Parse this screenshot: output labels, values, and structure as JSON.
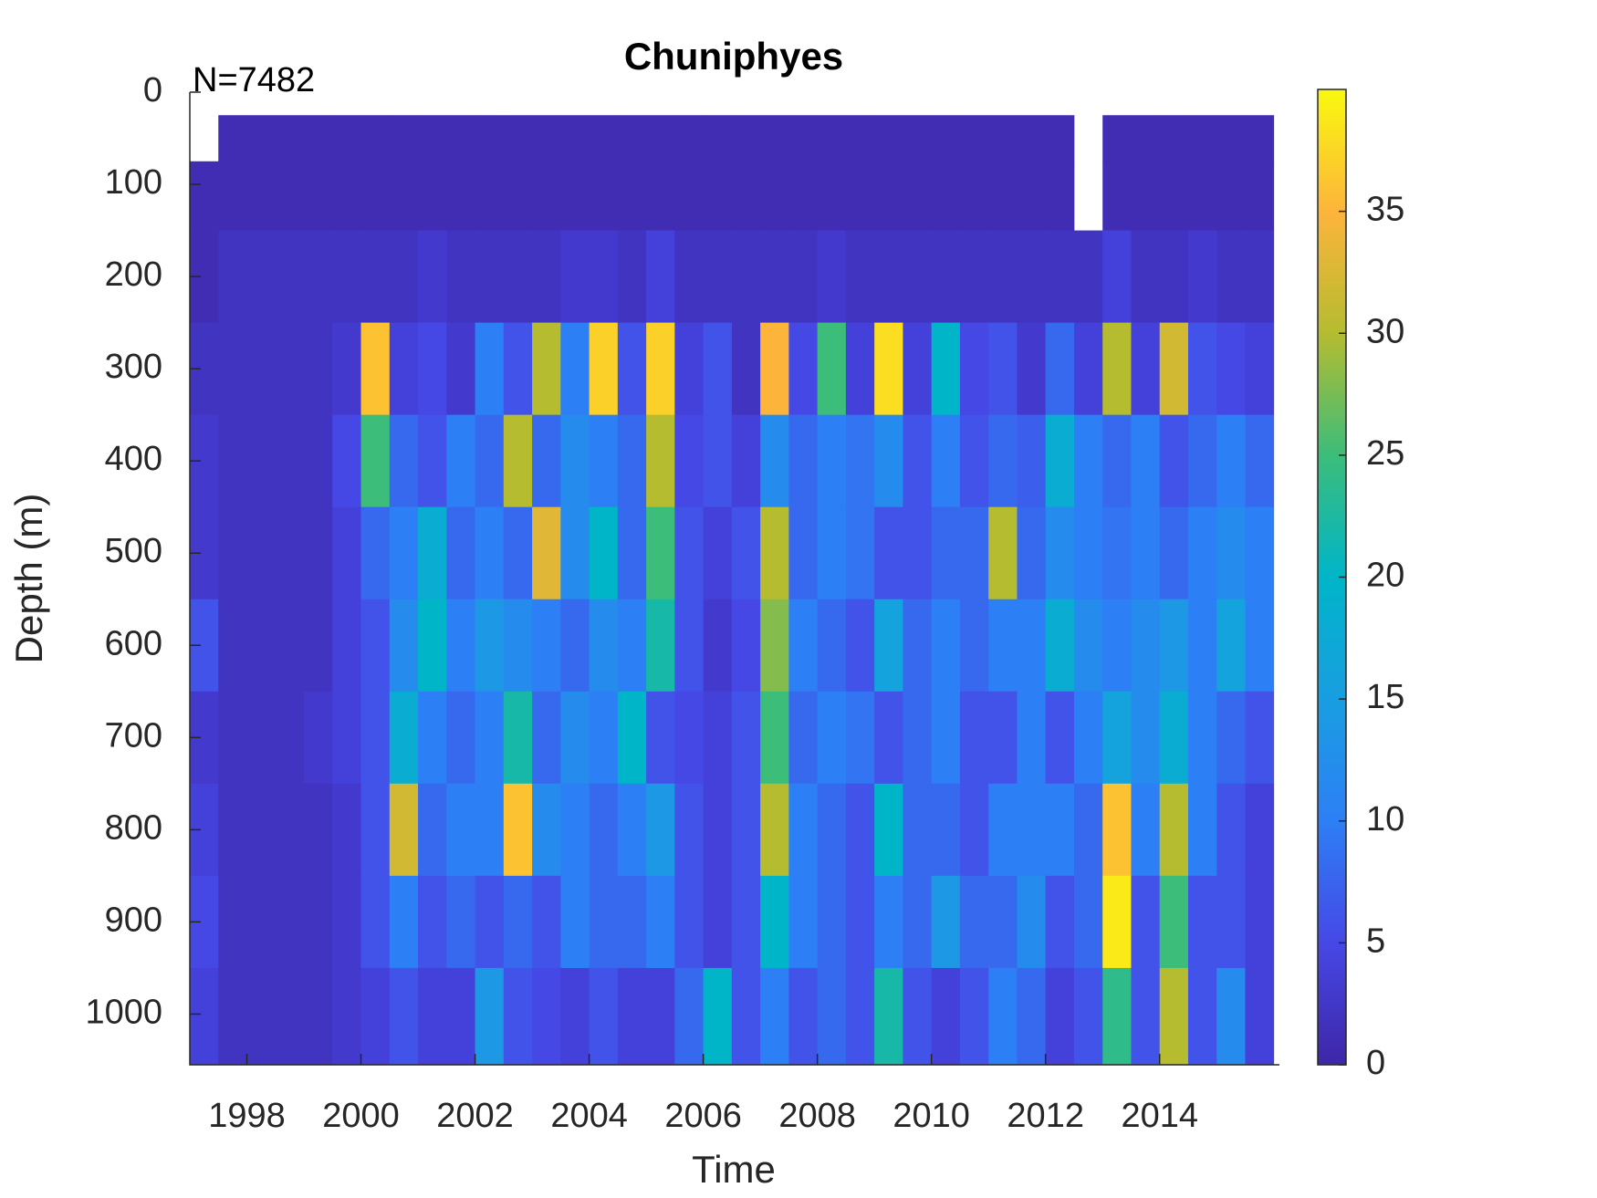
{
  "chart_data": {
    "type": "heatmap",
    "title": "Chuniphyes",
    "annotation": "N=7482",
    "xlabel": "Time",
    "ylabel": "Depth (m)",
    "x_edges": [
      1997,
      1997.5,
      1998,
      1998.5,
      1999,
      1999.5,
      2000,
      2000.5,
      2001,
      2001.5,
      2002,
      2002.5,
      2003,
      2003.5,
      2004,
      2004.5,
      2005,
      2005.5,
      2006,
      2006.5,
      2007,
      2007.5,
      2008,
      2008.5,
      2009,
      2009.5,
      2010,
      2010.5,
      2011,
      2011.5,
      2012,
      2012.5,
      2013,
      2013.5,
      2014,
      2014.5,
      2015,
      2015.5,
      2016
    ],
    "y_edges": [
      25,
      75,
      150,
      250,
      350,
      450,
      550,
      650,
      750,
      850,
      950,
      1055
    ],
    "values": [
      [
        null,
        1,
        1,
        1,
        1,
        1,
        1,
        1,
        1,
        1,
        1,
        1,
        1,
        1,
        1,
        1,
        1,
        1,
        1,
        1,
        1,
        1,
        1,
        1,
        1,
        1,
        1,
        1,
        1,
        1,
        1,
        null,
        1,
        1,
        1,
        1,
        1,
        1
      ],
      [
        1,
        1,
        1,
        1,
        1,
        1,
        1,
        1,
        1,
        1,
        1,
        1,
        1,
        1,
        1,
        1,
        1,
        1,
        1,
        1,
        1,
        1,
        1,
        1,
        1,
        1,
        1,
        1,
        1,
        1,
        1,
        null,
        1,
        1,
        1,
        1,
        1,
        1
      ],
      [
        1,
        2,
        2,
        2,
        2,
        2,
        2,
        2,
        3,
        2,
        2,
        2,
        2,
        3,
        3,
        2,
        4,
        2,
        2,
        2,
        2,
        2,
        3,
        2,
        2,
        2,
        2,
        2,
        2,
        2,
        2,
        2,
        4,
        2,
        2,
        3,
        2,
        2
      ],
      [
        2,
        2,
        2,
        2,
        2,
        3,
        36,
        4,
        5,
        3,
        10,
        6,
        30,
        10,
        37,
        6,
        37,
        4,
        6,
        2,
        35,
        5,
        25,
        4,
        38,
        4,
        20,
        5,
        6,
        3,
        8,
        4,
        30,
        4,
        32,
        6,
        5,
        4
      ],
      [
        3,
        2,
        2,
        2,
        2,
        5,
        25,
        8,
        6,
        10,
        8,
        30,
        8,
        12,
        10,
        8,
        30,
        5,
        6,
        4,
        12,
        8,
        10,
        9,
        12,
        6,
        10,
        6,
        8,
        7,
        18,
        10,
        8,
        10,
        6,
        8,
        10,
        8
      ],
      [
        3,
        2,
        2,
        2,
        2,
        4,
        8,
        10,
        18,
        8,
        10,
        8,
        33,
        12,
        20,
        8,
        25,
        6,
        4,
        6,
        30,
        8,
        10,
        9,
        6,
        6,
        8,
        8,
        30,
        8,
        12,
        10,
        9,
        10,
        8,
        10,
        12,
        10
      ],
      [
        6,
        2,
        2,
        2,
        2,
        4,
        6,
        12,
        20,
        10,
        14,
        12,
        10,
        8,
        12,
        10,
        22,
        6,
        3,
        5,
        28,
        10,
        8,
        6,
        16,
        8,
        10,
        8,
        10,
        10,
        18,
        12,
        10,
        12,
        14,
        10,
        16,
        10
      ],
      [
        3,
        2,
        2,
        2,
        3,
        4,
        6,
        18,
        10,
        8,
        10,
        22,
        8,
        12,
        10,
        20,
        6,
        5,
        4,
        6,
        25,
        8,
        10,
        9,
        6,
        8,
        10,
        6,
        6,
        10,
        6,
        10,
        16,
        12,
        18,
        10,
        8,
        6
      ],
      [
        4,
        2,
        2,
        2,
        2,
        3,
        6,
        32,
        8,
        10,
        10,
        36,
        12,
        10,
        8,
        10,
        14,
        6,
        4,
        6,
        30,
        10,
        8,
        6,
        20,
        8,
        8,
        6,
        10,
        10,
        10,
        8,
        36,
        10,
        30,
        10,
        6,
        4
      ],
      [
        5,
        2,
        2,
        2,
        2,
        3,
        6,
        10,
        6,
        8,
        6,
        8,
        6,
        10,
        8,
        8,
        10,
        6,
        4,
        6,
        20,
        10,
        8,
        6,
        10,
        8,
        14,
        8,
        8,
        12,
        6,
        8,
        39,
        6,
        25,
        6,
        6,
        4
      ],
      [
        4,
        2,
        2,
        2,
        2,
        3,
        4,
        6,
        4,
        4,
        14,
        6,
        5,
        4,
        6,
        4,
        4,
        8,
        20,
        6,
        10,
        6,
        8,
        6,
        22,
        6,
        4,
        6,
        10,
        8,
        4,
        6,
        24,
        6,
        30,
        6,
        12,
        4
      ]
    ],
    "xlim": [
      1997,
      2016.1
    ],
    "xticks": [
      1998,
      2000,
      2002,
      2004,
      2006,
      2008,
      2010,
      2012,
      2014
    ],
    "ylim": [
      0,
      1055
    ],
    "y_reversed": true,
    "yticks": [
      0,
      100,
      200,
      300,
      400,
      500,
      600,
      700,
      800,
      900,
      1000
    ],
    "clim": [
      0,
      40
    ],
    "cticks": [
      0,
      5,
      10,
      15,
      20,
      25,
      30,
      35
    ]
  }
}
